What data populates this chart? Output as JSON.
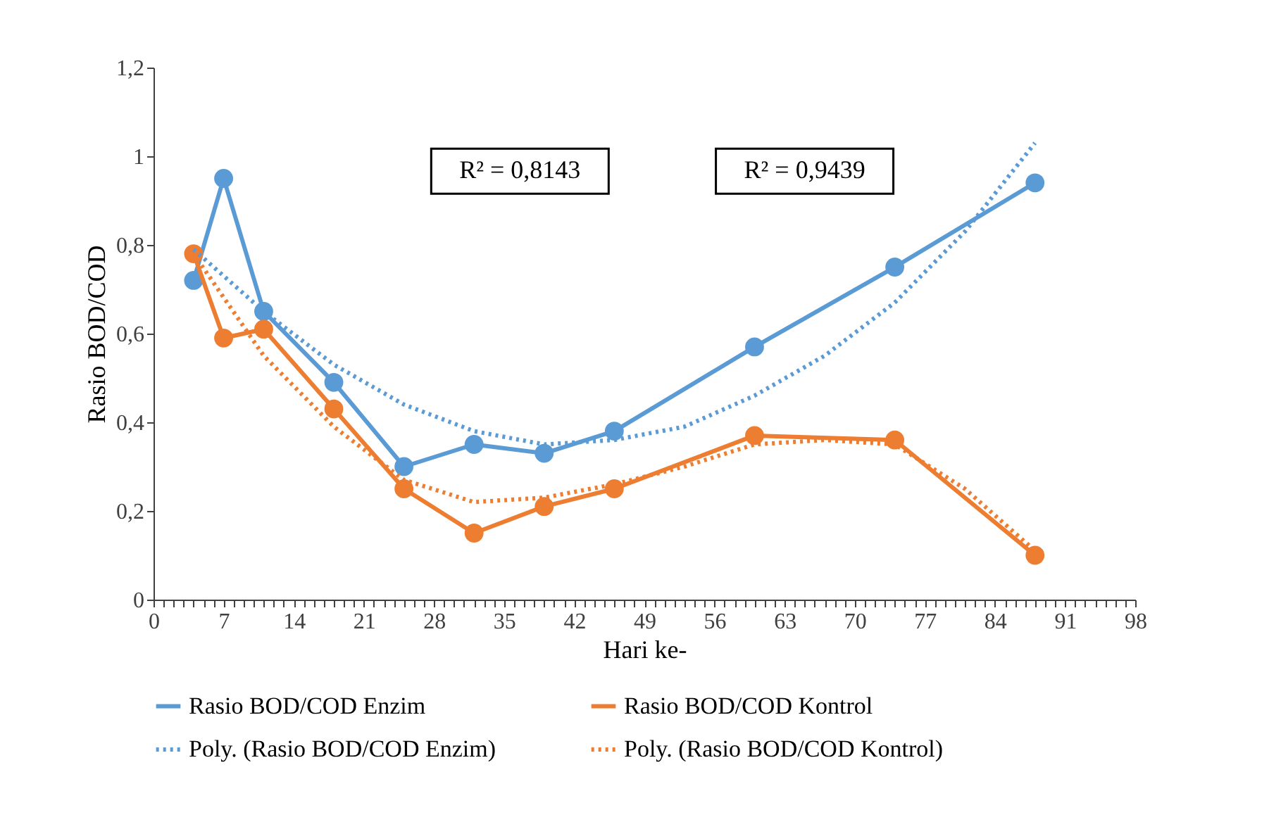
{
  "chart_data": {
    "type": "line",
    "xlabel": "Hari ke-",
    "ylabel": "Rasio BOD/COD",
    "xlim": [
      0,
      98
    ],
    "ylim": [
      0,
      1.2
    ],
    "xticks": [
      0,
      {
        "value": 1,
        "label": null
      },
      {
        "value": 2,
        "label": null
      },
      {
        "value": 3,
        "label": null
      },
      {
        "value": 4,
        "label": null
      },
      {
        "value": 5,
        "label": null
      },
      {
        "value": 6,
        "label": null
      },
      7,
      {
        "value": 8,
        "label": null
      },
      {
        "value": 9,
        "label": null
      },
      {
        "value": 10,
        "label": null
      },
      {
        "value": 11,
        "label": null
      },
      {
        "value": 12,
        "label": null
      },
      {
        "value": 13,
        "label": null
      },
      14,
      {
        "value": 15,
        "label": null
      },
      {
        "value": 16,
        "label": null
      },
      {
        "value": 17,
        "label": null
      },
      {
        "value": 18,
        "label": null
      },
      {
        "value": 19,
        "label": null
      },
      {
        "value": 20,
        "label": null
      },
      21,
      {
        "value": 22,
        "label": null
      },
      {
        "value": 23,
        "label": null
      },
      {
        "value": 24,
        "label": null
      },
      {
        "value": 25,
        "label": null
      },
      {
        "value": 26,
        "label": null
      },
      {
        "value": 27,
        "label": null
      },
      28,
      {
        "value": 29,
        "label": null
      },
      {
        "value": 30,
        "label": null
      },
      {
        "value": 31,
        "label": null
      },
      {
        "value": 32,
        "label": null
      },
      {
        "value": 33,
        "label": null
      },
      {
        "value": 34,
        "label": null
      },
      35,
      {
        "value": 36,
        "label": null
      },
      {
        "value": 37,
        "label": null
      },
      {
        "value": 38,
        "label": null
      },
      {
        "value": 39,
        "label": null
      },
      {
        "value": 40,
        "label": null
      },
      {
        "value": 41,
        "label": null
      },
      42,
      {
        "value": 43,
        "label": null
      },
      {
        "value": 44,
        "label": null
      },
      {
        "value": 45,
        "label": null
      },
      {
        "value": 46,
        "label": null
      },
      {
        "value": 47,
        "label": null
      },
      {
        "value": 48,
        "label": null
      },
      49,
      {
        "value": 50,
        "label": null
      },
      {
        "value": 51,
        "label": null
      },
      {
        "value": 52,
        "label": null
      },
      {
        "value": 53,
        "label": null
      },
      {
        "value": 54,
        "label": null
      },
      {
        "value": 55,
        "label": null
      },
      56,
      {
        "value": 57,
        "label": null
      },
      {
        "value": 58,
        "label": null
      },
      {
        "value": 59,
        "label": null
      },
      {
        "value": 60,
        "label": null
      },
      {
        "value": 61,
        "label": null
      },
      {
        "value": 62,
        "label": null
      },
      63,
      {
        "value": 64,
        "label": null
      },
      {
        "value": 65,
        "label": null
      },
      {
        "value": 66,
        "label": null
      },
      {
        "value": 67,
        "label": null
      },
      {
        "value": 68,
        "label": null
      },
      {
        "value": 69,
        "label": null
      },
      70,
      {
        "value": 71,
        "label": null
      },
      {
        "value": 72,
        "label": null
      },
      {
        "value": 73,
        "label": null
      },
      {
        "value": 74,
        "label": null
      },
      {
        "value": 75,
        "label": null
      },
      {
        "value": 76,
        "label": null
      },
      77,
      {
        "value": 78,
        "label": null
      },
      {
        "value": 79,
        "label": null
      },
      {
        "value": 80,
        "label": null
      },
      {
        "value": 81,
        "label": null
      },
      {
        "value": 82,
        "label": null
      },
      {
        "value": 83,
        "label": null
      },
      84,
      {
        "value": 85,
        "label": null
      },
      {
        "value": 86,
        "label": null
      },
      {
        "value": 87,
        "label": null
      },
      {
        "value": 88,
        "label": null
      },
      {
        "value": 89,
        "label": null
      },
      {
        "value": 90,
        "label": null
      },
      91,
      {
        "value": 92,
        "label": null
      },
      {
        "value": 93,
        "label": null
      },
      {
        "value": 94,
        "label": null
      },
      {
        "value": 95,
        "label": null
      },
      {
        "value": 96,
        "label": null
      },
      {
        "value": 97,
        "label": null
      },
      98
    ],
    "yticks": [
      0,
      {
        "value": 0.2,
        "label": "0,2"
      },
      {
        "value": 0.4,
        "label": "0,4"
      },
      {
        "value": 0.6,
        "label": "0,6"
      },
      {
        "value": 0.8,
        "label": "0,8"
      },
      1,
      {
        "value": 1.2,
        "label": "1,2"
      }
    ],
    "grid": false,
    "legend": "bottom",
    "annotations": [
      "R² = 0,8143",
      "R² = 0,9439"
    ],
    "series": [
      {
        "name": "Rasio BOD/COD Enzim",
        "color": "#5b9bd5",
        "marker": "circle",
        "line_style": "solid",
        "x": [
          4,
          7,
          11,
          18,
          25,
          32,
          39,
          46,
          60,
          74,
          88
        ],
        "values": [
          0.72,
          0.95,
          0.65,
          0.49,
          0.3,
          0.35,
          0.33,
          0.38,
          0.57,
          0.75,
          0.94
        ]
      },
      {
        "name": "Rasio BOD/COD Kontrol",
        "color": "#ed7d31",
        "marker": "circle",
        "line_style": "solid",
        "x": [
          4,
          7,
          11,
          18,
          25,
          32,
          39,
          46,
          60,
          74,
          88
        ],
        "values": [
          0.78,
          0.59,
          0.61,
          0.43,
          0.25,
          0.15,
          0.21,
          0.25,
          0.37,
          0.36,
          0.1
        ]
      },
      {
        "name": "Poly. (Rasio BOD/COD Enzim)",
        "color": "#5b9bd5",
        "marker": "none",
        "line_style": "dotted",
        "x": [
          4,
          11,
          18,
          25,
          32,
          39,
          46,
          53,
          60,
          67,
          74,
          81,
          88
        ],
        "values": [
          0.79,
          0.65,
          0.53,
          0.44,
          0.38,
          0.35,
          0.36,
          0.39,
          0.46,
          0.55,
          0.67,
          0.83,
          1.03
        ]
      },
      {
        "name": "Poly. (Rasio BOD/COD Kontrol)",
        "color": "#ed7d31",
        "marker": "none",
        "line_style": "dotted",
        "x": [
          4,
          11,
          18,
          25,
          32,
          39,
          46,
          53,
          60,
          67,
          74,
          81,
          88
        ],
        "values": [
          0.78,
          0.55,
          0.39,
          0.27,
          0.22,
          0.23,
          0.26,
          0.3,
          0.35,
          0.36,
          0.35,
          0.25,
          0.11
        ]
      }
    ]
  }
}
